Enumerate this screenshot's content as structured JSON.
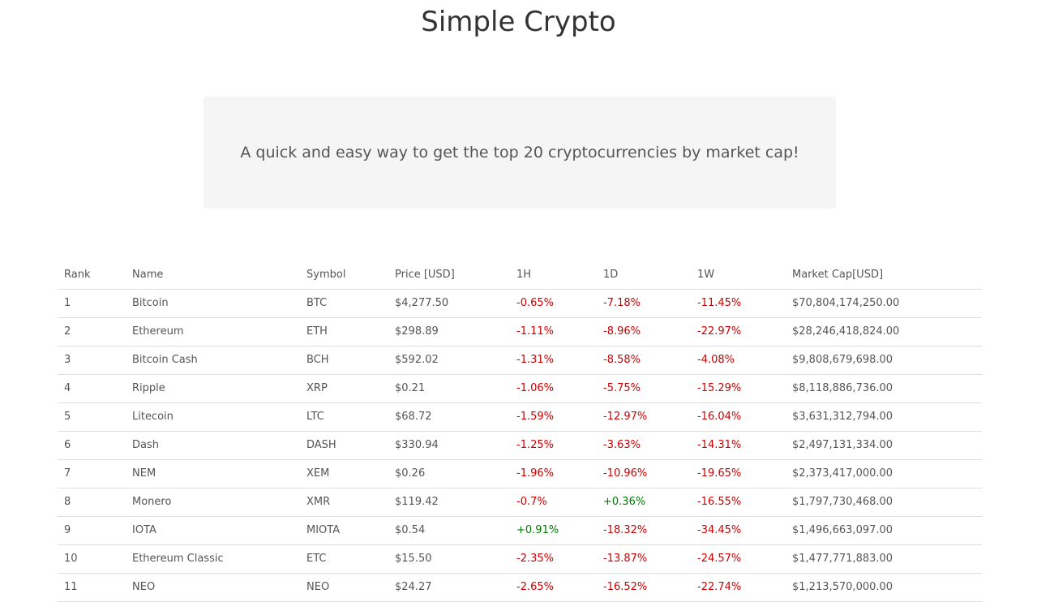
{
  "header": {
    "title": "Simple Crypto"
  },
  "hero": {
    "tagline": "A quick and easy way to get the top 20 cryptocurrencies by market cap!"
  },
  "colors": {
    "negative": "#cc0000",
    "positive": "#007a00",
    "hero_bg": "#f5f5f5"
  },
  "table": {
    "headers": [
      "Rank",
      "Name",
      "Symbol",
      "Price [USD]",
      "1H",
      "1D",
      "1W",
      "Market Cap[USD]"
    ],
    "rows": [
      {
        "rank": "1",
        "name": "Bitcoin",
        "symbol": "BTC",
        "price": "$4,277.50",
        "h1": "-0.65%",
        "d1": "-7.18%",
        "w1": "-11.45%",
        "mcap": "$70,804,174,250.00"
      },
      {
        "rank": "2",
        "name": "Ethereum",
        "symbol": "ETH",
        "price": "$298.89",
        "h1": "-1.11%",
        "d1": "-8.96%",
        "w1": "-22.97%",
        "mcap": "$28,246,418,824.00"
      },
      {
        "rank": "3",
        "name": "Bitcoin Cash",
        "symbol": "BCH",
        "price": "$592.02",
        "h1": "-1.31%",
        "d1": "-8.58%",
        "w1": "-4.08%",
        "mcap": "$9,808,679,698.00"
      },
      {
        "rank": "4",
        "name": "Ripple",
        "symbol": "XRP",
        "price": "$0.21",
        "h1": "-1.06%",
        "d1": "-5.75%",
        "w1": "-15.29%",
        "mcap": "$8,118,886,736.00"
      },
      {
        "rank": "5",
        "name": "Litecoin",
        "symbol": "LTC",
        "price": "$68.72",
        "h1": "-1.59%",
        "d1": "-12.97%",
        "w1": "-16.04%",
        "mcap": "$3,631,312,794.00"
      },
      {
        "rank": "6",
        "name": "Dash",
        "symbol": "DASH",
        "price": "$330.94",
        "h1": "-1.25%",
        "d1": "-3.63%",
        "w1": "-14.31%",
        "mcap": "$2,497,131,334.00"
      },
      {
        "rank": "7",
        "name": "NEM",
        "symbol": "XEM",
        "price": "$0.26",
        "h1": "-1.96%",
        "d1": "-10.96%",
        "w1": "-19.65%",
        "mcap": "$2,373,417,000.00"
      },
      {
        "rank": "8",
        "name": "Monero",
        "symbol": "XMR",
        "price": "$119.42",
        "h1": "-0.7%",
        "d1": "+0.36%",
        "w1": "-16.55%",
        "mcap": "$1,797,730,468.00"
      },
      {
        "rank": "9",
        "name": "IOTA",
        "symbol": "MIOTA",
        "price": "$0.54",
        "h1": "+0.91%",
        "d1": "-18.32%",
        "w1": "-34.45%",
        "mcap": "$1,496,663,097.00"
      },
      {
        "rank": "10",
        "name": "Ethereum Classic",
        "symbol": "ETC",
        "price": "$15.50",
        "h1": "-2.35%",
        "d1": "-13.87%",
        "w1": "-24.57%",
        "mcap": "$1,477,771,883.00"
      },
      {
        "rank": "11",
        "name": "NEO",
        "symbol": "NEO",
        "price": "$24.27",
        "h1": "-2.65%",
        "d1": "-16.52%",
        "w1": "-22.74%",
        "mcap": "$1,213,570,000.00"
      }
    ]
  }
}
